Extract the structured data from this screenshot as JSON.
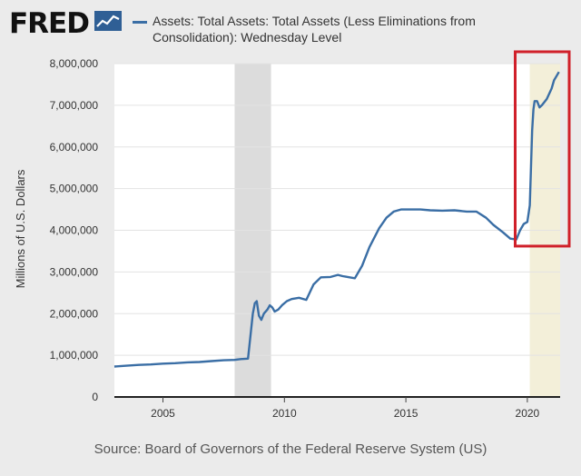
{
  "header": {
    "logo": "FRED",
    "logo_icon": "graph-line-icon",
    "legend_label": "Assets: Total Assets: Total Assets (Less Eliminations from Consolidation): Wednesday Level"
  },
  "footer": {
    "source": "Source: Board of Governors of the Federal Reserve System (US)"
  },
  "colors": {
    "line": "#3a6ea5",
    "recession_shading": "#dcdcdc",
    "recent_shading": "#f3efd9",
    "highlight_box": "#d0202a",
    "plot_background": "#ffffff",
    "page_background": "#ebebeb"
  },
  "chart_data": {
    "type": "line",
    "title": "Assets: Total Assets: Total Assets (Less Eliminations from Consolidation): Wednesday Level",
    "xlabel": "",
    "ylabel": "Millions of U.S. Dollars",
    "xlim": [
      2003.0,
      2021.35
    ],
    "ylim": [
      0,
      8000000
    ],
    "x_ticks": [
      2005,
      2010,
      2015,
      2020
    ],
    "x_tick_labels": [
      "2005",
      "2010",
      "2015",
      "2020"
    ],
    "y_ticks": [
      0,
      1000000,
      2000000,
      3000000,
      4000000,
      5000000,
      6000000,
      7000000,
      8000000
    ],
    "y_tick_labels": [
      "0",
      "1,000,000",
      "2,000,000",
      "3,000,000",
      "4,000,000",
      "5,000,000",
      "6,000,000",
      "7,000,000",
      "8,000,000"
    ],
    "grid": "horizontal",
    "shaded_periods": [
      {
        "name": "recession",
        "start": 2007.95,
        "end": 2009.45
      },
      {
        "name": "recent",
        "start": 2020.1,
        "end": 2021.35
      }
    ],
    "highlight_region": {
      "x": [
        2019.5,
        2021.35
      ],
      "y": [
        3620000,
        8000000
      ]
    },
    "series": [
      {
        "name": "Assets: Total Assets: Total Assets (Less Eliminations from Consolidation): Wednesday Level",
        "x": [
          2003.0,
          2003.5,
          2004.0,
          2004.5,
          2005.0,
          2005.5,
          2006.0,
          2006.5,
          2007.0,
          2007.5,
          2007.95,
          2008.2,
          2008.5,
          2008.7,
          2008.78,
          2008.86,
          2008.95,
          2009.05,
          2009.15,
          2009.3,
          2009.4,
          2009.5,
          2009.6,
          2009.75,
          2009.9,
          2010.1,
          2010.3,
          2010.6,
          2010.9,
          2011.2,
          2011.5,
          2011.9,
          2012.2,
          2012.4,
          2012.6,
          2012.9,
          2013.2,
          2013.5,
          2013.9,
          2014.2,
          2014.5,
          2014.8,
          2015.2,
          2015.6,
          2016.0,
          2016.5,
          2017.0,
          2017.5,
          2017.9,
          2018.3,
          2018.6,
          2019.0,
          2019.3,
          2019.55,
          2019.7,
          2019.85,
          2020.0,
          2020.1,
          2020.15,
          2020.2,
          2020.25,
          2020.3,
          2020.4,
          2020.5,
          2020.6,
          2020.8,
          2021.0,
          2021.1,
          2021.2,
          2021.3
        ],
        "values": [
          730000,
          750000,
          770000,
          780000,
          800000,
          810000,
          830000,
          840000,
          860000,
          880000,
          890000,
          910000,
          920000,
          2000000,
          2250000,
          2300000,
          1950000,
          1850000,
          2000000,
          2100000,
          2200000,
          2150000,
          2050000,
          2100000,
          2200000,
          2300000,
          2350000,
          2380000,
          2330000,
          2700000,
          2870000,
          2880000,
          2930000,
          2900000,
          2880000,
          2850000,
          3150000,
          3600000,
          4050000,
          4300000,
          4450000,
          4500000,
          4500000,
          4500000,
          4480000,
          4470000,
          4480000,
          4450000,
          4450000,
          4300000,
          4130000,
          3950000,
          3800000,
          3780000,
          4000000,
          4150000,
          4200000,
          4600000,
          5500000,
          6400000,
          6900000,
          7100000,
          7100000,
          6950000,
          7000000,
          7150000,
          7400000,
          7600000,
          7700000,
          7800000
        ]
      }
    ]
  }
}
